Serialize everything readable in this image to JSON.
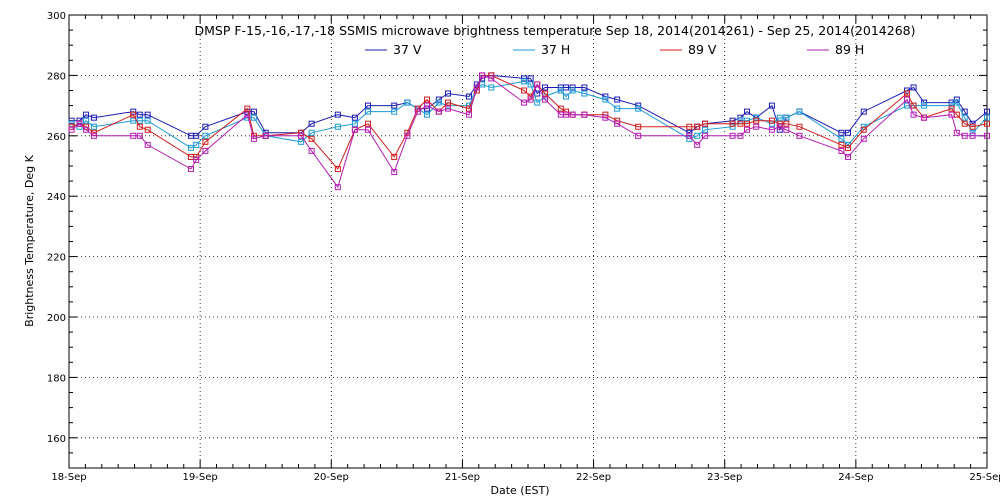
{
  "chart_data": {
    "type": "line",
    "title": "DMSP F-15,-16,-17,-18 SSMIS microwave brightness temperature Sep 18, 2014(2014261) - Sep 25, 2014(2014268)",
    "xlabel": "Date (EST)",
    "ylabel": "Brightness Temperature, Deg K",
    "ylim": [
      150,
      300
    ],
    "yticks": [
      160,
      180,
      200,
      220,
      240,
      260,
      280,
      300
    ],
    "xlim": [
      0,
      7
    ],
    "xticks": [
      {
        "x": 0,
        "label": "18-Sep"
      },
      {
        "x": 1,
        "label": "19-Sep"
      },
      {
        "x": 2,
        "label": "20-Sep"
      },
      {
        "x": 3,
        "label": "21-Sep"
      },
      {
        "x": 4,
        "label": "22-Sep"
      },
      {
        "x": 5,
        "label": "23-Sep"
      },
      {
        "x": 6,
        "label": "24-Sep"
      },
      {
        "x": 7,
        "label": "25-Sep"
      }
    ],
    "grid": true,
    "legend_position": "top",
    "series": [
      {
        "name": "37 V",
        "color": "#1c1cb4",
        "x": [
          0.02,
          0.08,
          0.13,
          0.19,
          0.49,
          0.54,
          0.6,
          0.93,
          0.97,
          1.04,
          1.36,
          1.41,
          1.5,
          1.77,
          1.85,
          2.05,
          2.18,
          2.28,
          2.48,
          2.58,
          2.66,
          2.73,
          2.82,
          2.89,
          3.05,
          3.11,
          3.15,
          3.22,
          3.47,
          3.52,
          3.57,
          3.63,
          3.75,
          3.79,
          3.84,
          3.93,
          4.09,
          4.18,
          4.34,
          4.73,
          4.79,
          4.85,
          5.06,
          5.12,
          5.17,
          5.24,
          5.36,
          5.42,
          5.47,
          5.57,
          5.89,
          5.94,
          6.06,
          6.39,
          6.44,
          6.52,
          6.73,
          6.77,
          6.83,
          6.89,
          7.0
        ],
        "y": [
          265,
          265,
          267,
          266,
          268,
          267,
          267,
          260,
          260,
          263,
          268,
          268,
          261,
          261,
          264,
          267,
          266,
          270,
          270,
          271,
          269,
          269,
          272,
          274,
          273,
          277,
          279,
          280,
          279,
          279,
          274,
          276,
          276,
          276,
          276,
          276,
          273,
          272,
          270,
          261,
          263,
          264,
          265,
          266,
          268,
          266,
          270,
          262,
          266,
          268,
          261,
          261,
          268,
          275,
          276,
          271,
          271,
          272,
          268,
          264,
          268
        ]
      },
      {
        "name": "37 H",
        "color": "#1c9ad6",
        "x": [
          0.02,
          0.08,
          0.13,
          0.19,
          0.49,
          0.54,
          0.6,
          0.93,
          0.97,
          1.04,
          1.36,
          1.41,
          1.5,
          1.77,
          1.85,
          2.05,
          2.18,
          2.28,
          2.48,
          2.58,
          2.66,
          2.73,
          2.82,
          2.89,
          3.05,
          3.11,
          3.15,
          3.22,
          3.47,
          3.52,
          3.57,
          3.63,
          3.75,
          3.79,
          3.84,
          3.93,
          4.09,
          4.18,
          4.34,
          4.73,
          4.79,
          4.85,
          5.06,
          5.12,
          5.17,
          5.24,
          5.36,
          5.42,
          5.47,
          5.57,
          5.89,
          5.94,
          6.06,
          6.39,
          6.44,
          6.52,
          6.73,
          6.77,
          6.83,
          6.89,
          7.0
        ],
        "y": [
          264,
          263,
          265,
          263,
          265,
          265,
          265,
          256,
          257,
          260,
          266,
          266,
          260,
          258,
          261,
          263,
          264,
          268,
          268,
          271,
          269,
          267,
          271,
          270,
          270,
          276,
          277,
          276,
          278,
          277,
          271,
          273,
          275,
          273,
          275,
          274,
          272,
          269,
          269,
          259,
          260,
          262,
          263,
          265,
          265,
          266,
          264,
          266,
          266,
          268,
          259,
          257,
          263,
          270,
          270,
          270,
          270,
          271,
          266,
          261,
          266
        ]
      },
      {
        "name": "89 V",
        "color": "#d01c1c",
        "x": [
          0.02,
          0.08,
          0.13,
          0.19,
          0.49,
          0.54,
          0.6,
          0.93,
          0.97,
          1.04,
          1.36,
          1.41,
          1.5,
          1.77,
          1.85,
          2.05,
          2.18,
          2.28,
          2.48,
          2.58,
          2.66,
          2.73,
          2.82,
          2.89,
          3.05,
          3.11,
          3.15,
          3.22,
          3.47,
          3.52,
          3.57,
          3.63,
          3.75,
          3.79,
          3.84,
          3.93,
          4.09,
          4.18,
          4.34,
          4.73,
          4.79,
          4.85,
          5.06,
          5.12,
          5.17,
          5.24,
          5.36,
          5.42,
          5.47,
          5.57,
          5.89,
          5.94,
          6.06,
          6.39,
          6.44,
          6.52,
          6.73,
          6.77,
          6.83,
          6.89,
          7.0
        ],
        "y": [
          263,
          264,
          263,
          261,
          267,
          263,
          262,
          253,
          253,
          258,
          269,
          260,
          260,
          261,
          259,
          249,
          262,
          264,
          253,
          261,
          269,
          272,
          268,
          271,
          269,
          275,
          280,
          280,
          275,
          273,
          277,
          274,
          269,
          268,
          267,
          267,
          267,
          265,
          263,
          263,
          263,
          264,
          264,
          264,
          264,
          265,
          265,
          264,
          264,
          263,
          257,
          256,
          262,
          274,
          270,
          266,
          269,
          267,
          264,
          263,
          264
        ]
      },
      {
        "name": "89 H",
        "color": "#b41cb4",
        "x": [
          0.02,
          0.08,
          0.13,
          0.19,
          0.49,
          0.54,
          0.6,
          0.93,
          0.97,
          1.04,
          1.36,
          1.41,
          1.5,
          1.77,
          1.85,
          2.05,
          2.18,
          2.28,
          2.48,
          2.58,
          2.66,
          2.73,
          2.82,
          2.89,
          3.05,
          3.11,
          3.15,
          3.22,
          3.47,
          3.52,
          3.57,
          3.63,
          3.75,
          3.79,
          3.84,
          3.93,
          4.09,
          4.18,
          4.34,
          4.73,
          4.79,
          4.85,
          5.06,
          5.12,
          5.17,
          5.24,
          5.36,
          5.42,
          5.47,
          5.57,
          5.89,
          5.94,
          6.06,
          6.39,
          6.44,
          6.52,
          6.73,
          6.77,
          6.83,
          6.89,
          7.0
        ],
        "y": [
          262,
          264,
          262,
          260,
          260,
          260,
          257,
          249,
          252,
          255,
          267,
          259,
          260,
          260,
          255,
          243,
          262,
          262,
          248,
          260,
          268,
          270,
          268,
          269,
          267,
          276,
          280,
          279,
          271,
          272,
          277,
          272,
          267,
          267,
          267,
          267,
          266,
          264,
          260,
          260,
          257,
          260,
          260,
          260,
          262,
          263,
          262,
          263,
          262,
          260,
          255,
          253,
          259,
          272,
          267,
          266,
          267,
          261,
          260,
          260,
          260
        ]
      }
    ]
  }
}
